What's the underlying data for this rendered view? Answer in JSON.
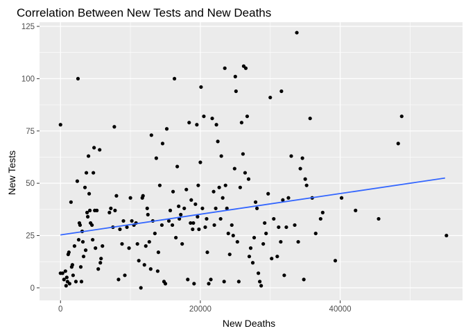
{
  "chart_data": {
    "type": "scatter",
    "title": "Correlation Between New Tests and New Deaths",
    "xlabel": "New Deaths",
    "ylabel": "New Tests",
    "xlim": [
      -3000,
      57500
    ],
    "ylim": [
      -6,
      127
    ],
    "x_ticks": [
      0,
      20000,
      40000
    ],
    "x_tick_labels": [
      "0",
      "20000",
      "40000"
    ],
    "x_minor_ticks": [
      10000,
      30000,
      50000
    ],
    "y_ticks": [
      0,
      25,
      50,
      75,
      100,
      125
    ],
    "y_tick_labels": [
      "0",
      "25",
      "50",
      "75",
      "100",
      "125"
    ],
    "y_minor_ticks": [
      12.5,
      37.5,
      62.5,
      87.5,
      112.5
    ],
    "grid": true,
    "background": "#ebebeb",
    "point_color": "#000000",
    "trend_line": {
      "type": "linear",
      "color": "#3366ff",
      "x": [
        0,
        55000
      ],
      "y": [
        25.3,
        52.5
      ]
    },
    "points": [
      [
        0,
        78
      ],
      [
        0,
        7
      ],
      [
        300,
        7
      ],
      [
        500,
        4
      ],
      [
        700,
        8
      ],
      [
        800,
        1
      ],
      [
        900,
        5
      ],
      [
        1000,
        3
      ],
      [
        1100,
        16
      ],
      [
        1200,
        17
      ],
      [
        1300,
        2
      ],
      [
        1500,
        41
      ],
      [
        1600,
        10
      ],
      [
        1700,
        11
      ],
      [
        1800,
        6
      ],
      [
        2000,
        20
      ],
      [
        2200,
        3
      ],
      [
        2400,
        51
      ],
      [
        2500,
        100
      ],
      [
        2600,
        23
      ],
      [
        2700,
        31
      ],
      [
        2800,
        30
      ],
      [
        2900,
        10
      ],
      [
        3000,
        3
      ],
      [
        3100,
        27
      ],
      [
        3200,
        22
      ],
      [
        3300,
        15
      ],
      [
        3500,
        48
      ],
      [
        3600,
        18
      ],
      [
        3700,
        55
      ],
      [
        3800,
        36
      ],
      [
        3900,
        34
      ],
      [
        4000,
        63
      ],
      [
        4100,
        45
      ],
      [
        4200,
        37
      ],
      [
        4300,
        31
      ],
      [
        4500,
        30
      ],
      [
        4600,
        23
      ],
      [
        4700,
        55
      ],
      [
        4800,
        67
      ],
      [
        4900,
        37
      ],
      [
        5000,
        19
      ],
      [
        5200,
        37
      ],
      [
        5400,
        9
      ],
      [
        5600,
        66
      ],
      [
        5700,
        12
      ],
      [
        5800,
        14
      ],
      [
        6000,
        20
      ],
      [
        7000,
        36
      ],
      [
        7200,
        38
      ],
      [
        7500,
        29
      ],
      [
        7700,
        77
      ],
      [
        7800,
        37
      ],
      [
        8000,
        44
      ],
      [
        8300,
        4
      ],
      [
        8500,
        28
      ],
      [
        8800,
        21
      ],
      [
        9000,
        32
      ],
      [
        9200,
        6
      ],
      [
        9500,
        29
      ],
      [
        9800,
        19
      ],
      [
        10000,
        43
      ],
      [
        10200,
        32
      ],
      [
        10500,
        30
      ],
      [
        10800,
        31
      ],
      [
        11000,
        21
      ],
      [
        11200,
        13
      ],
      [
        11500,
        0
      ],
      [
        11700,
        43
      ],
      [
        11800,
        44
      ],
      [
        12000,
        11
      ],
      [
        12200,
        20
      ],
      [
        12400,
        38
      ],
      [
        12500,
        35
      ],
      [
        12700,
        22
      ],
      [
        12900,
        9
      ],
      [
        13000,
        73
      ],
      [
        13200,
        32
      ],
      [
        13500,
        26
      ],
      [
        13700,
        62
      ],
      [
        13900,
        8
      ],
      [
        14000,
        17
      ],
      [
        14200,
        49
      ],
      [
        14500,
        30
      ],
      [
        14600,
        69
      ],
      [
        14800,
        3
      ],
      [
        15000,
        2
      ],
      [
        15200,
        76
      ],
      [
        15500,
        32
      ],
      [
        15700,
        37
      ],
      [
        16000,
        30
      ],
      [
        16100,
        46
      ],
      [
        16300,
        100
      ],
      [
        16500,
        24
      ],
      [
        16700,
        58
      ],
      [
        16900,
        39
      ],
      [
        17000,
        33
      ],
      [
        17200,
        35
      ],
      [
        17400,
        21
      ],
      [
        17700,
        38
      ],
      [
        18000,
        47
      ],
      [
        18200,
        4
      ],
      [
        18400,
        79
      ],
      [
        18600,
        31
      ],
      [
        18700,
        42
      ],
      [
        18900,
        28
      ],
      [
        19000,
        31
      ],
      [
        19100,
        2
      ],
      [
        19300,
        40
      ],
      [
        19500,
        78
      ],
      [
        19600,
        34
      ],
      [
        19700,
        49
      ],
      [
        19800,
        28
      ],
      [
        20000,
        60
      ],
      [
        20100,
        96
      ],
      [
        20300,
        38
      ],
      [
        20500,
        82
      ],
      [
        20700,
        29
      ],
      [
        20900,
        33
      ],
      [
        21000,
        17
      ],
      [
        21200,
        2
      ],
      [
        21500,
        4
      ],
      [
        21700,
        81
      ],
      [
        21900,
        46
      ],
      [
        22000,
        30
      ],
      [
        22200,
        38
      ],
      [
        22300,
        78
      ],
      [
        22500,
        70
      ],
      [
        22700,
        48
      ],
      [
        22900,
        33
      ],
      [
        23000,
        63
      ],
      [
        23200,
        43
      ],
      [
        23400,
        3
      ],
      [
        23500,
        105
      ],
      [
        23600,
        49
      ],
      [
        23800,
        38
      ],
      [
        24000,
        26
      ],
      [
        24200,
        16
      ],
      [
        24500,
        30
      ],
      [
        24700,
        25
      ],
      [
        24900,
        57
      ],
      [
        25000,
        101
      ],
      [
        25100,
        94
      ],
      [
        25300,
        22
      ],
      [
        25500,
        3
      ],
      [
        25700,
        48
      ],
      [
        25900,
        79
      ],
      [
        26100,
        64
      ],
      [
        26200,
        106
      ],
      [
        26400,
        55
      ],
      [
        26500,
        105
      ],
      [
        26700,
        82
      ],
      [
        26900,
        52
      ],
      [
        27000,
        15
      ],
      [
        27200,
        19
      ],
      [
        27500,
        12
      ],
      [
        27700,
        24
      ],
      [
        27900,
        41
      ],
      [
        28100,
        38
      ],
      [
        28300,
        7
      ],
      [
        28500,
        3
      ],
      [
        28700,
        1
      ],
      [
        29000,
        21
      ],
      [
        29200,
        31
      ],
      [
        29400,
        26
      ],
      [
        29700,
        45
      ],
      [
        30000,
        91
      ],
      [
        30200,
        14
      ],
      [
        30500,
        33
      ],
      [
        31000,
        15
      ],
      [
        31200,
        29
      ],
      [
        31500,
        22
      ],
      [
        31600,
        94
      ],
      [
        31800,
        42
      ],
      [
        32000,
        6
      ],
      [
        32300,
        29
      ],
      [
        32600,
        43
      ],
      [
        33000,
        63
      ],
      [
        33500,
        30
      ],
      [
        33800,
        122
      ],
      [
        34000,
        22
      ],
      [
        34300,
        57
      ],
      [
        34600,
        62
      ],
      [
        34800,
        4
      ],
      [
        35000,
        52
      ],
      [
        35200,
        49
      ],
      [
        35700,
        81
      ],
      [
        36000,
        43
      ],
      [
        36500,
        26
      ],
      [
        37200,
        33
      ],
      [
        37500,
        36
      ],
      [
        39300,
        13
      ],
      [
        40200,
        43
      ],
      [
        42200,
        37
      ],
      [
        45500,
        33
      ],
      [
        48300,
        69
      ],
      [
        48800,
        82
      ],
      [
        55200,
        25
      ]
    ]
  }
}
